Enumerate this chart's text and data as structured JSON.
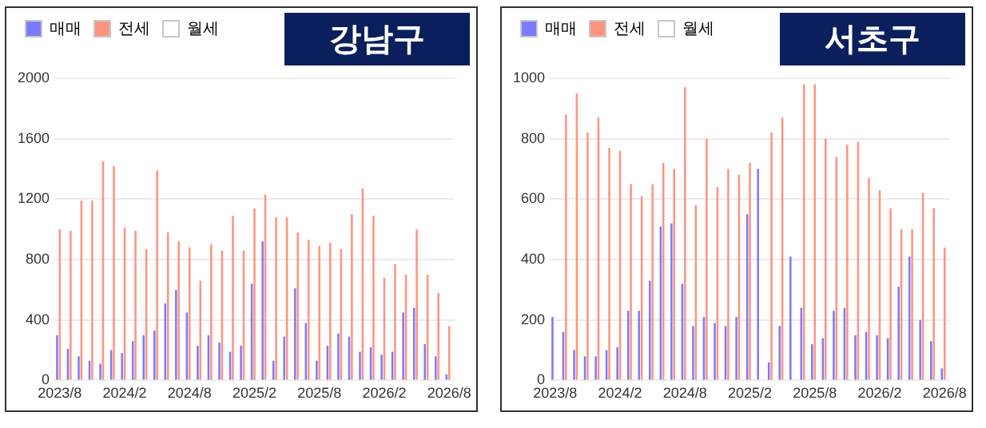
{
  "chart_data": [
    {
      "type": "bar",
      "title": "강남구",
      "legend": "top left",
      "grid": "y",
      "ylim": [
        0,
        2000
      ],
      "yticks": [
        0,
        400,
        800,
        1200,
        1600,
        2000
      ],
      "categories": [
        "2023/8",
        null,
        null,
        null,
        null,
        null,
        "2024/2",
        null,
        null,
        null,
        null,
        null,
        "2024/8",
        null,
        null,
        null,
        null,
        null,
        "2025/2",
        null,
        null,
        null,
        null,
        null,
        "2025/8",
        null,
        null,
        null,
        null,
        null,
        "2026/2",
        null,
        null,
        null,
        null,
        null,
        "2026/8"
      ],
      "series": [
        {
          "name": "매매",
          "color": "#7b7bff",
          "values": [
            300,
            210,
            160,
            130,
            110,
            200,
            180,
            260,
            300,
            330,
            510,
            600,
            450,
            230,
            300,
            250,
            190,
            230,
            640,
            920,
            130,
            290,
            610,
            380,
            130,
            230,
            310,
            290,
            190,
            220,
            170,
            190,
            450,
            480,
            240,
            160,
            40
          ]
        },
        {
          "name": "전세",
          "color": "#ff9480",
          "values": [
            1000,
            990,
            1190,
            1190,
            1450,
            1420,
            1010,
            990,
            870,
            1390,
            980,
            920,
            880,
            660,
            900,
            860,
            1090,
            860,
            1140,
            1230,
            1080,
            1080,
            980,
            930,
            890,
            910,
            870,
            1100,
            1270,
            1090,
            680,
            770,
            700,
            1000,
            700,
            580,
            360
          ]
        },
        {
          "name": "월세",
          "color": "#ffffff",
          "values": [
            null,
            null,
            null,
            null,
            null,
            null,
            null,
            null,
            null,
            null,
            null,
            null,
            null,
            null,
            null,
            null,
            null,
            null,
            null,
            null,
            null,
            null,
            null,
            null,
            null,
            null,
            null,
            null,
            null,
            null,
            null,
            null,
            null,
            null,
            null,
            null,
            null
          ]
        }
      ]
    },
    {
      "type": "bar",
      "title": "서초구",
      "legend": "top left",
      "grid": "y",
      "ylim": [
        0,
        1000
      ],
      "yticks": [
        0,
        200,
        400,
        600,
        800,
        1000
      ],
      "categories": [
        "2023/8",
        null,
        null,
        null,
        null,
        null,
        "2024/2",
        null,
        null,
        null,
        null,
        null,
        "2024/8",
        null,
        null,
        null,
        null,
        null,
        "2025/2",
        null,
        null,
        null,
        null,
        null,
        "2025/8",
        null,
        null,
        null,
        null,
        null,
        "2026/2",
        null,
        null,
        null,
        null,
        null,
        "2026/8"
      ],
      "series": [
        {
          "name": "매매",
          "color": "#7b7bff",
          "values": [
            210,
            160,
            100,
            80,
            80,
            100,
            110,
            230,
            230,
            330,
            510,
            520,
            320,
            180,
            210,
            190,
            180,
            210,
            550,
            700,
            60,
            180,
            410,
            240,
            120,
            140,
            230,
            240,
            150,
            160,
            150,
            140,
            310,
            410,
            200,
            130,
            40
          ]
        },
        {
          "name": "전세",
          "color": "#ff9480",
          "values": [
            null,
            880,
            950,
            820,
            870,
            770,
            760,
            650,
            610,
            650,
            720,
            700,
            970,
            580,
            800,
            640,
            700,
            680,
            720,
            null,
            820,
            870,
            null,
            980,
            980,
            800,
            740,
            780,
            790,
            670,
            630,
            570,
            500,
            500,
            620,
            570,
            440
          ]
        },
        {
          "name": "월세",
          "color": "#ffffff",
          "values": [
            null,
            null,
            null,
            null,
            null,
            null,
            null,
            null,
            null,
            null,
            null,
            null,
            null,
            null,
            null,
            null,
            null,
            null,
            null,
            null,
            null,
            null,
            null,
            null,
            null,
            null,
            null,
            null,
            null,
            null,
            null,
            null,
            null,
            null,
            null,
            null,
            null
          ]
        }
      ]
    }
  ]
}
